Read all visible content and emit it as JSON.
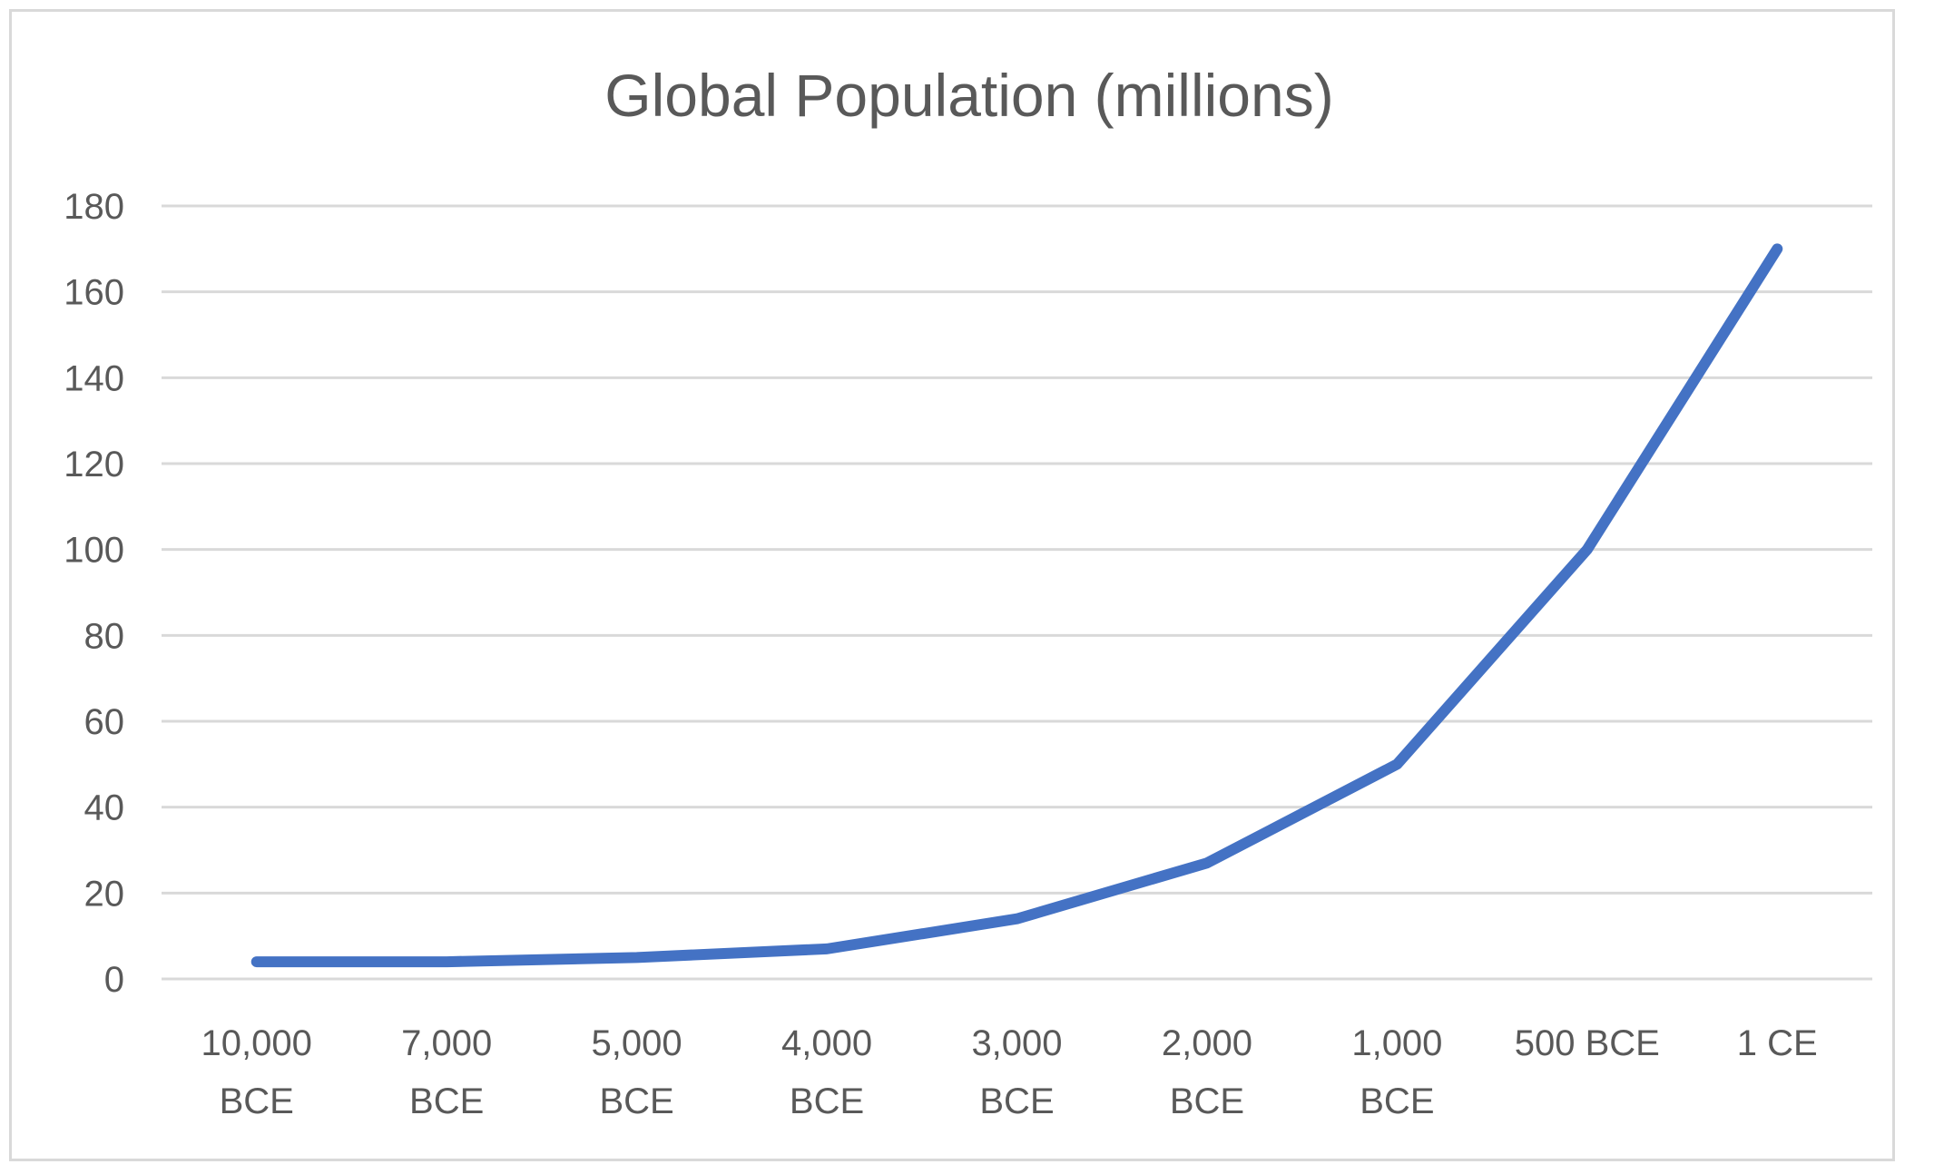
{
  "chart_data": {
    "type": "line",
    "title": "Global Population (millions)",
    "xlabel": "",
    "ylabel": "",
    "categories": [
      [
        "10,000",
        "BCE"
      ],
      [
        "7,000",
        "BCE"
      ],
      [
        "5,000",
        "BCE"
      ],
      [
        "4,000",
        "BCE"
      ],
      [
        "3,000",
        "BCE"
      ],
      [
        "2,000",
        "BCE"
      ],
      [
        "1,000",
        "BCE"
      ],
      [
        "500 BCE"
      ],
      [
        "1 CE"
      ]
    ],
    "series": [
      {
        "values": [
          4,
          4,
          5,
          7,
          14,
          27,
          50,
          100,
          170
        ],
        "color": "#4472c4"
      }
    ],
    "ylim": [
      0,
      180
    ],
    "yticks": [
      0,
      20,
      40,
      60,
      80,
      100,
      120,
      140,
      160,
      180
    ],
    "grid": true,
    "legend": "none"
  }
}
